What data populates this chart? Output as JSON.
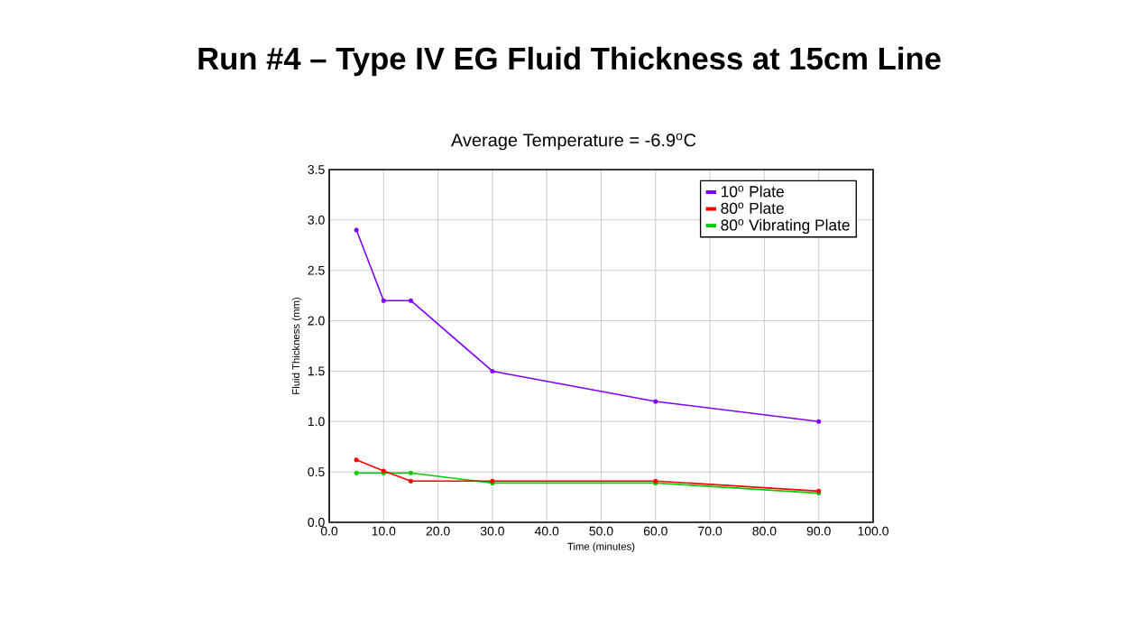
{
  "chart_data": {
    "type": "line",
    "title": "Run #4 – Type IV EG Fluid Thickness at 15cm Line",
    "subtitle": "Average Temperature = -6.9$^{o}$C",
    "xlabel": "Time (minutes)",
    "ylabel": "Fluid Thickness (mm)",
    "x": [
      5,
      10,
      15,
      30,
      60,
      90
    ],
    "series": [
      {
        "name": "10$^{o}$ Plate",
        "color": "#7f00ff",
        "values": [
          2.9,
          2.2,
          2.2,
          1.5,
          1.2,
          1.0
        ]
      },
      {
        "name": "80$^{o}$ Plate",
        "color": "#ff0000",
        "values": [
          0.62,
          0.51,
          0.41,
          0.41,
          0.41,
          0.31
        ]
      },
      {
        "name": "80$^{o}$ Vibrating Plate",
        "color": "#00cc00",
        "values": [
          0.49,
          0.49,
          0.49,
          0.39,
          0.39,
          0.29
        ]
      }
    ],
    "xlim": [
      0,
      100
    ],
    "ylim": [
      0,
      3.5
    ],
    "xticks": [
      {
        "value": 0,
        "label": "0.0"
      },
      {
        "value": 10,
        "label": "10.0"
      },
      {
        "value": 20,
        "label": "20.0"
      },
      {
        "value": 30,
        "label": "30.0"
      },
      {
        "value": 40,
        "label": "40.0"
      },
      {
        "value": 50,
        "label": "50.0"
      },
      {
        "value": 60,
        "label": "60.0"
      },
      {
        "value": 70,
        "label": "70.0"
      },
      {
        "value": 80,
        "label": "80.0"
      },
      {
        "value": 90,
        "label": "90.0"
      },
      {
        "value": 100,
        "label": "100.0"
      }
    ],
    "yticks": [
      {
        "value": 0,
        "label": "0.0"
      },
      {
        "value": 0.5,
        "label": "0.5"
      },
      {
        "value": 1,
        "label": "1.0"
      },
      {
        "value": 1.5,
        "label": "1.5"
      },
      {
        "value": 2,
        "label": "2.0"
      },
      {
        "value": 2.5,
        "label": "2.5"
      },
      {
        "value": 3,
        "label": "3.0"
      },
      {
        "value": 3.5,
        "label": "3.5"
      }
    ],
    "grid": true,
    "legend": "top right",
    "marker": "circle",
    "line_style": "solid"
  }
}
